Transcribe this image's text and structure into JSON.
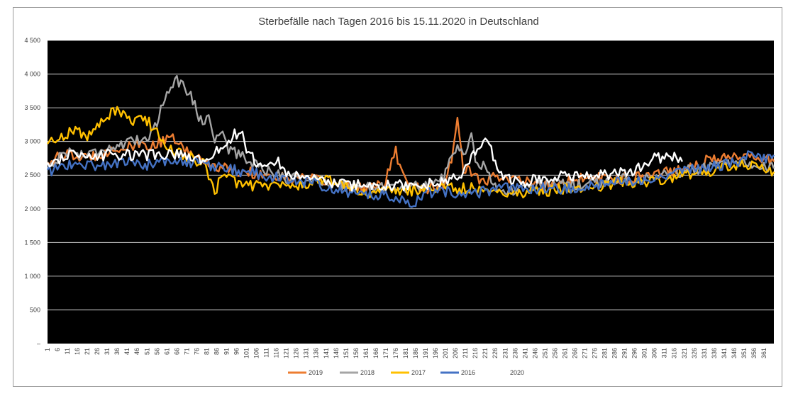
{
  "chart_data": {
    "type": "line",
    "title": "Sterbefälle nach Tagen 2016 bis 15.11.2020 in Deutschland",
    "xlabel": "",
    "ylabel": "",
    "ylim": [
      0,
      4500
    ],
    "yticks": [
      0,
      500,
      1000,
      1500,
      2000,
      2500,
      3000,
      3500,
      4000,
      4500
    ],
    "ytick_labels": [
      "–",
      "500",
      "1 000",
      "1 500",
      "2 000",
      "2 500",
      "3 000",
      "3 500",
      "4 000",
      "4 500"
    ],
    "xticks": [
      1,
      6,
      11,
      16,
      21,
      26,
      31,
      36,
      41,
      46,
      51,
      56,
      61,
      66,
      71,
      76,
      81,
      86,
      91,
      96,
      101,
      106,
      111,
      116,
      121,
      126,
      131,
      136,
      141,
      146,
      151,
      156,
      161,
      166,
      171,
      176,
      181,
      186,
      191,
      196,
      201,
      206,
      211,
      216,
      221,
      226,
      231,
      236,
      241,
      246,
      251,
      256,
      261,
      266,
      271,
      276,
      281,
      286,
      291,
      296,
      301,
      306,
      311,
      316,
      321,
      326,
      331,
      336,
      341,
      346,
      351,
      356,
      361
    ],
    "xlim": [
      1,
      366
    ],
    "background": "#000000",
    "grid": true,
    "legend_position": "bottom",
    "series": [
      {
        "name": "2019",
        "color": "#ED7D31",
        "values": [
          [
            1,
            2700
          ],
          [
            10,
            2800
          ],
          [
            20,
            2750
          ],
          [
            30,
            2850
          ],
          [
            40,
            2900
          ],
          [
            50,
            2950
          ],
          [
            55,
            2950
          ],
          [
            60,
            3000
          ],
          [
            65,
            3050
          ],
          [
            70,
            2850
          ],
          [
            75,
            2800
          ],
          [
            80,
            2700
          ],
          [
            85,
            2650
          ],
          [
            90,
            2600
          ],
          [
            100,
            2550
          ],
          [
            110,
            2500
          ],
          [
            120,
            2450
          ],
          [
            130,
            2450
          ],
          [
            140,
            2400
          ],
          [
            150,
            2350
          ],
          [
            160,
            2300
          ],
          [
            170,
            2350
          ],
          [
            176,
            2850
          ],
          [
            180,
            2450
          ],
          [
            190,
            2300
          ],
          [
            200,
            2350
          ],
          [
            204,
            2700
          ],
          [
            207,
            3300
          ],
          [
            210,
            2600
          ],
          [
            220,
            2400
          ],
          [
            230,
            2500
          ],
          [
            240,
            2400
          ],
          [
            250,
            2350
          ],
          [
            260,
            2400
          ],
          [
            270,
            2450
          ],
          [
            280,
            2450
          ],
          [
            290,
            2450
          ],
          [
            300,
            2500
          ],
          [
            310,
            2550
          ],
          [
            320,
            2600
          ],
          [
            330,
            2700
          ],
          [
            340,
            2750
          ],
          [
            350,
            2800
          ],
          [
            360,
            2750
          ],
          [
            366,
            2700
          ]
        ]
      },
      {
        "name": "2018",
        "color": "#A5A5A5",
        "values": [
          [
            1,
            2600
          ],
          [
            10,
            2850
          ],
          [
            20,
            2800
          ],
          [
            30,
            2900
          ],
          [
            40,
            2950
          ],
          [
            50,
            3050
          ],
          [
            55,
            3200
          ],
          [
            58,
            3500
          ],
          [
            62,
            3800
          ],
          [
            65,
            3920
          ],
          [
            68,
            3850
          ],
          [
            72,
            3750
          ],
          [
            75,
            3550
          ],
          [
            78,
            3300
          ],
          [
            82,
            3350
          ],
          [
            85,
            3050
          ],
          [
            88,
            3150
          ],
          [
            92,
            2900
          ],
          [
            100,
            2750
          ],
          [
            110,
            2600
          ],
          [
            120,
            2450
          ],
          [
            130,
            2450
          ],
          [
            140,
            2400
          ],
          [
            150,
            2350
          ],
          [
            160,
            2300
          ],
          [
            170,
            2350
          ],
          [
            180,
            2300
          ],
          [
            190,
            2350
          ],
          [
            200,
            2450
          ],
          [
            206,
            2900
          ],
          [
            210,
            2800
          ],
          [
            214,
            3100
          ],
          [
            217,
            2600
          ],
          [
            220,
            2700
          ],
          [
            225,
            2400
          ],
          [
            230,
            2250
          ],
          [
            240,
            2300
          ],
          [
            250,
            2350
          ],
          [
            260,
            2400
          ],
          [
            270,
            2350
          ],
          [
            280,
            2400
          ],
          [
            290,
            2450
          ],
          [
            300,
            2450
          ],
          [
            310,
            2500
          ],
          [
            320,
            2550
          ],
          [
            330,
            2600
          ],
          [
            340,
            2650
          ],
          [
            350,
            2650
          ],
          [
            360,
            2600
          ],
          [
            366,
            2600
          ]
        ]
      },
      {
        "name": "2017",
        "color": "#FFC000",
        "values": [
          [
            1,
            2950
          ],
          [
            5,
            3050
          ],
          [
            10,
            3100
          ],
          [
            15,
            3200
          ],
          [
            20,
            3050
          ],
          [
            25,
            3200
          ],
          [
            30,
            3300
          ],
          [
            34,
            3500
          ],
          [
            38,
            3400
          ],
          [
            42,
            3300
          ],
          [
            46,
            3300
          ],
          [
            50,
            3350
          ],
          [
            54,
            3200
          ],
          [
            58,
            3050
          ],
          [
            62,
            2900
          ],
          [
            70,
            2800
          ],
          [
            80,
            2650
          ],
          [
            85,
            2200
          ],
          [
            88,
            2550
          ],
          [
            95,
            2400
          ],
          [
            100,
            2350
          ],
          [
            110,
            2350
          ],
          [
            120,
            2350
          ],
          [
            130,
            2350
          ],
          [
            140,
            2450
          ],
          [
            150,
            2350
          ],
          [
            160,
            2250
          ],
          [
            170,
            2250
          ],
          [
            180,
            2250
          ],
          [
            190,
            2300
          ],
          [
            200,
            2300
          ],
          [
            210,
            2300
          ],
          [
            220,
            2300
          ],
          [
            230,
            2250
          ],
          [
            240,
            2250
          ],
          [
            250,
            2250
          ],
          [
            260,
            2300
          ],
          [
            270,
            2300
          ],
          [
            280,
            2350
          ],
          [
            290,
            2400
          ],
          [
            300,
            2400
          ],
          [
            310,
            2450
          ],
          [
            320,
            2500
          ],
          [
            330,
            2550
          ],
          [
            340,
            2600
          ],
          [
            350,
            2650
          ],
          [
            360,
            2600
          ],
          [
            366,
            2550
          ]
        ]
      },
      {
        "name": "2016",
        "color": "#4472C4",
        "values": [
          [
            1,
            2550
          ],
          [
            10,
            2650
          ],
          [
            20,
            2650
          ],
          [
            30,
            2650
          ],
          [
            40,
            2700
          ],
          [
            50,
            2650
          ],
          [
            60,
            2700
          ],
          [
            70,
            2700
          ],
          [
            80,
            2650
          ],
          [
            90,
            2600
          ],
          [
            100,
            2550
          ],
          [
            110,
            2500
          ],
          [
            120,
            2450
          ],
          [
            130,
            2400
          ],
          [
            140,
            2350
          ],
          [
            150,
            2250
          ],
          [
            160,
            2200
          ],
          [
            170,
            2200
          ],
          [
            180,
            2150
          ],
          [
            184,
            2050
          ],
          [
            190,
            2250
          ],
          [
            200,
            2250
          ],
          [
            210,
            2250
          ],
          [
            220,
            2250
          ],
          [
            230,
            2300
          ],
          [
            240,
            2300
          ],
          [
            250,
            2300
          ],
          [
            260,
            2300
          ],
          [
            270,
            2300
          ],
          [
            280,
            2350
          ],
          [
            290,
            2400
          ],
          [
            300,
            2450
          ],
          [
            310,
            2500
          ],
          [
            320,
            2550
          ],
          [
            330,
            2600
          ],
          [
            340,
            2650
          ],
          [
            350,
            2700
          ],
          [
            356,
            2850
          ],
          [
            360,
            2750
          ],
          [
            366,
            2800
          ]
        ]
      },
      {
        "name": "2020",
        "color": "#FFFFFF",
        "values": [
          [
            1,
            2650
          ],
          [
            10,
            2800
          ],
          [
            20,
            2750
          ],
          [
            30,
            2800
          ],
          [
            40,
            2800
          ],
          [
            50,
            2800
          ],
          [
            60,
            2800
          ],
          [
            70,
            2800
          ],
          [
            80,
            2700
          ],
          [
            85,
            2800
          ],
          [
            90,
            3000
          ],
          [
            95,
            3100
          ],
          [
            98,
            3150
          ],
          [
            102,
            2800
          ],
          [
            110,
            2600
          ],
          [
            116,
            2750
          ],
          [
            120,
            2550
          ],
          [
            130,
            2450
          ],
          [
            140,
            2400
          ],
          [
            150,
            2350
          ],
          [
            160,
            2350
          ],
          [
            170,
            2350
          ],
          [
            180,
            2350
          ],
          [
            190,
            2350
          ],
          [
            200,
            2400
          ],
          [
            210,
            2500
          ],
          [
            215,
            2850
          ],
          [
            221,
            3000
          ],
          [
            225,
            2800
          ],
          [
            230,
            2450
          ],
          [
            240,
            2400
          ],
          [
            250,
            2450
          ],
          [
            260,
            2500
          ],
          [
            270,
            2500
          ],
          [
            280,
            2500
          ],
          [
            290,
            2550
          ],
          [
            300,
            2600
          ],
          [
            306,
            2800
          ],
          [
            310,
            2750
          ],
          [
            316,
            2800
          ],
          [
            320,
            2700
          ]
        ]
      }
    ]
  }
}
